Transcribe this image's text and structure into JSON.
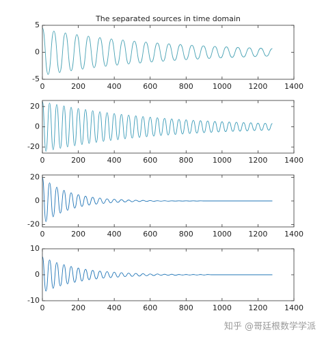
{
  "chart_data": [
    {
      "type": "line",
      "title": "The separated sources in time domain",
      "color": "#4aa3b5",
      "xlim": [
        0,
        1400
      ],
      "xticks": [
        0,
        200,
        400,
        600,
        800,
        1000,
        1200,
        1400
      ],
      "ylim": [
        -5,
        5
      ],
      "yticks": [
        -5,
        0,
        5
      ],
      "x": [
        0,
        32,
        64,
        96,
        128,
        160,
        192,
        224,
        256,
        288,
        320,
        352,
        384,
        416,
        448,
        480,
        512,
        544,
        576,
        608,
        640,
        672,
        704,
        736,
        768,
        800,
        832,
        864,
        896,
        928,
        960,
        992,
        1024,
        1056,
        1088,
        1120,
        1152,
        1184,
        1216,
        1248,
        1280
      ],
      "values": [
        4.5,
        -4.1,
        3.92,
        -3.75,
        3.58,
        -3.42,
        3.27,
        -3.12,
        2.98,
        -2.85,
        2.72,
        -2.6,
        2.48,
        -2.37,
        2.27,
        -2.17,
        2.07,
        -1.98,
        1.89,
        -1.8,
        1.72,
        -1.65,
        1.57,
        -1.5,
        1.44,
        -1.37,
        1.31,
        -1.25,
        1.2,
        -1.14,
        1.09,
        -1.04,
        1,
        -0.95,
        0.91,
        -0.87,
        0.83,
        -0.79,
        0.76,
        -0.72,
        0.69
      ]
    },
    {
      "type": "line",
      "color": "#3a9bb8",
      "xlim": [
        0,
        1400
      ],
      "xticks": [
        0,
        200,
        400,
        600,
        800,
        1000,
        1200,
        1400
      ],
      "ylim": [
        -26,
        26
      ],
      "yticks": [
        -20,
        0,
        20
      ],
      "x": [
        0,
        20,
        40,
        60,
        80,
        100,
        120,
        140,
        160,
        180,
        200,
        220,
        240,
        260,
        280,
        300,
        320,
        340,
        360,
        380,
        400,
        420,
        440,
        460,
        480,
        500,
        520,
        540,
        560,
        580,
        600,
        620,
        640,
        660,
        680,
        700,
        720,
        740,
        760,
        780,
        800,
        820,
        840,
        860,
        880,
        900,
        920,
        940,
        960,
        980,
        1000,
        1020,
        1040,
        1060,
        1080,
        1100,
        1120,
        1140,
        1160,
        1180,
        1200,
        1220,
        1240,
        1260,
        1280
      ],
      "values": [
        25,
        -24.2,
        23.4,
        -22.7,
        22,
        -21.3,
        20.6,
        -19.9,
        19.3,
        -18.7,
        18.1,
        -17.5,
        17,
        -16.4,
        15.9,
        -15.4,
        14.9,
        -14.4,
        14,
        -13.5,
        13.1,
        -12.7,
        12.3,
        -11.9,
        11.5,
        -11.2,
        10.8,
        -10.5,
        10.1,
        -9.8,
        9.5,
        -9.2,
        8.9,
        -8.6,
        8.3,
        -8.1,
        7.8,
        -7.6,
        7.3,
        -7.1,
        6.9,
        -6.6,
        6.4,
        -6.2,
        6,
        -5.8,
        5.7,
        -5.5,
        5.3,
        -5.1,
        5,
        -4.8,
        4.7,
        -4.5,
        4.4,
        -4.3,
        4.1,
        -4,
        3.9,
        -3.7,
        3.6,
        -3.5,
        3.4,
        -3.3,
        3.2
      ]
    },
    {
      "type": "line",
      "color": "#1f74b6",
      "xlim": [
        0,
        1400
      ],
      "xticks": [
        0,
        200,
        400,
        600,
        800,
        1000,
        1200,
        1400
      ],
      "ylim": [
        -22,
        22
      ],
      "yticks": [
        -20,
        0,
        20
      ],
      "x": [
        0,
        20,
        40,
        60,
        80,
        100,
        120,
        140,
        160,
        180,
        200,
        220,
        240,
        260,
        280,
        300,
        320,
        340,
        360,
        380,
        400,
        420,
        440,
        460,
        480,
        500,
        520,
        540,
        560,
        580,
        600,
        620,
        640,
        660,
        680,
        700,
        720,
        740,
        760,
        780,
        800,
        820,
        840,
        860,
        880,
        900,
        920,
        940,
        960,
        980,
        1000,
        1020,
        1040,
        1060,
        1080,
        1100,
        1120,
        1140,
        1160,
        1180,
        1200,
        1220,
        1240,
        1260,
        1280
      ],
      "values": [
        20,
        -17.5,
        15.3,
        -13.4,
        11.7,
        -10.3,
        9,
        -7.9,
        6.9,
        -6,
        5.3,
        -4.6,
        4,
        -3.5,
        3.1,
        -2.7,
        2.4,
        -2.1,
        1.8,
        -1.6,
        1.4,
        -1.2,
        1.1,
        -0.9,
        0.8,
        -0.7,
        0.6,
        -0.5,
        0.5,
        -0.4,
        0.3,
        -0.3,
        0.2,
        -0.2,
        0.2,
        -0.2,
        0.1,
        -0.1,
        0.1,
        -0.1,
        0.1,
        -0.1,
        0.1,
        -0.1,
        0.1,
        0,
        0,
        0,
        0,
        0,
        0,
        0,
        0,
        0,
        0,
        0,
        0,
        0,
        0,
        0,
        0,
        0,
        0,
        0,
        0
      ]
    },
    {
      "type": "line",
      "color": "#1f74b6",
      "xlim": [
        0,
        1400
      ],
      "xticks": [
        0,
        200,
        400,
        600,
        800,
        1000,
        1200,
        1400
      ],
      "ylim": [
        -10,
        10
      ],
      "yticks": [
        -10,
        0,
        10
      ],
      "x": [
        0,
        20,
        40,
        60,
        80,
        100,
        120,
        140,
        160,
        180,
        200,
        220,
        240,
        260,
        280,
        300,
        320,
        340,
        360,
        380,
        400,
        420,
        440,
        460,
        480,
        500,
        520,
        540,
        560,
        580,
        600,
        620,
        640,
        660,
        680,
        700,
        720,
        740,
        760,
        780,
        800,
        820,
        840,
        860,
        880,
        900,
        920,
        940,
        960,
        980,
        1000,
        1020,
        1040,
        1060,
        1080,
        1100,
        1120,
        1140,
        1160,
        1180,
        1200,
        1220,
        1240,
        1260,
        1280
      ],
      "values": [
        7,
        -6.3,
        5.7,
        -5.2,
        4.7,
        -4.3,
        3.9,
        -3.5,
        3.2,
        -2.9,
        2.6,
        -2.4,
        2.1,
        -1.9,
        1.7,
        -1.6,
        1.4,
        -1.3,
        1.2,
        -1.1,
        1,
        -0.9,
        0.8,
        -0.7,
        0.6,
        -0.6,
        0.5,
        -0.5,
        0.4,
        -0.4,
        0.3,
        -0.3,
        0.3,
        -0.2,
        0.2,
        -0.2,
        0.2,
        -0.2,
        0.1,
        -0.1,
        0.1,
        -0.1,
        0.1,
        -0.1,
        0.1,
        -0.1,
        0.1,
        0,
        0,
        0,
        0,
        0,
        0,
        0,
        0,
        0,
        0,
        0,
        0,
        0,
        0,
        0,
        0,
        0,
        0
      ]
    }
  ],
  "watermark": "知乎 @哥廷根数学学派"
}
